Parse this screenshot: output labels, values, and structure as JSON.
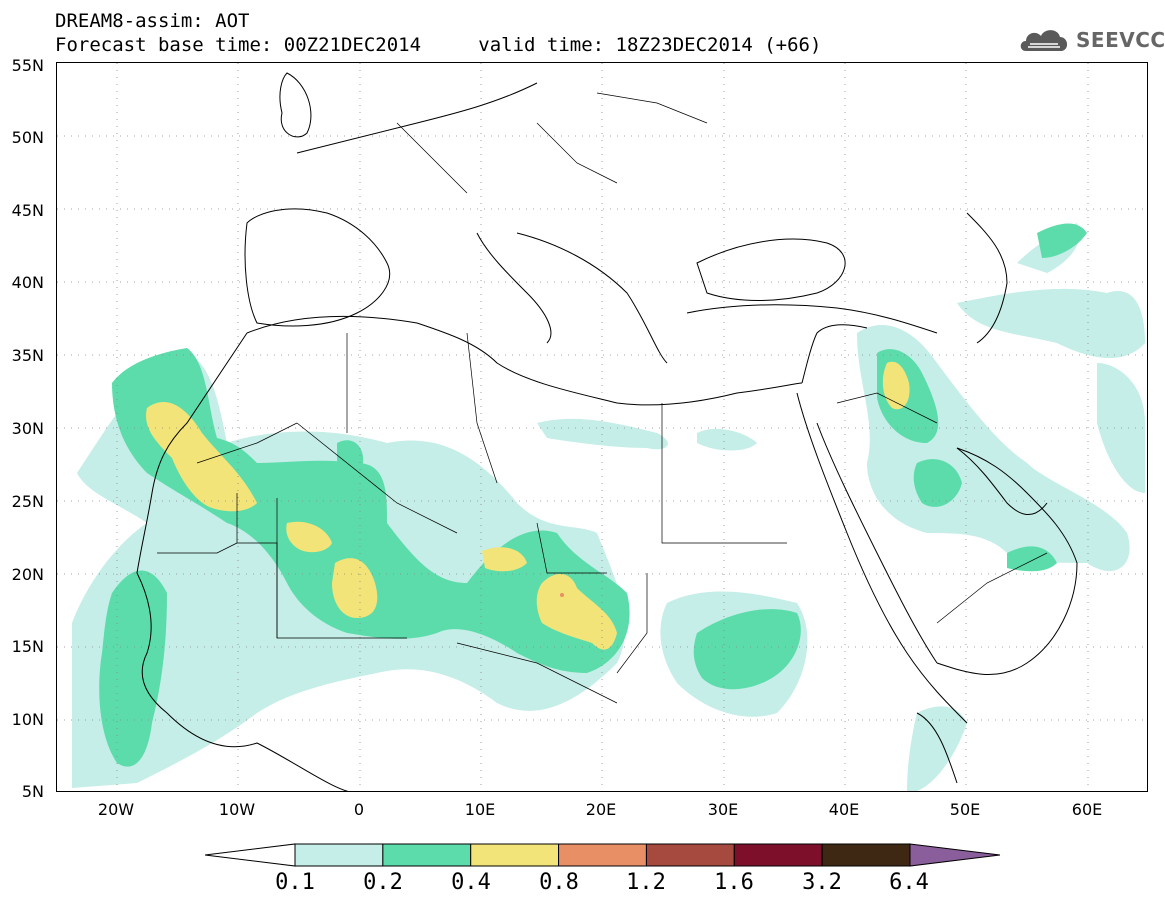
{
  "header": {
    "title_line1": "DREAM8-assim: AOT",
    "base_time": "Forecast base time: 00Z21DEC2014",
    "valid_time": "valid time: 18Z23DEC2014 (+66)"
  },
  "logo": {
    "text": "SEEVCCC",
    "icon": "cloud-icon"
  },
  "map": {
    "lat_labels": [
      "55N",
      "50N",
      "45N",
      "40N",
      "35N",
      "30N",
      "25N",
      "20N",
      "15N",
      "10N",
      "5N"
    ],
    "lon_labels": [
      "20W",
      "10W",
      "0",
      "10E",
      "20E",
      "30E",
      "40E",
      "50E",
      "60E"
    ]
  },
  "colorbar": {
    "labels": [
      "0.1",
      "0.2",
      "0.4",
      "0.8",
      "1.2",
      "1.6",
      "3.2",
      "6.4"
    ],
    "colors": [
      "#ffffff",
      "#c4eee7",
      "#5ddcab",
      "#f3e479",
      "#e88f66",
      "#a64a3f",
      "#7d0f2b",
      "#3e2814",
      "#8a5d9b"
    ]
  }
}
